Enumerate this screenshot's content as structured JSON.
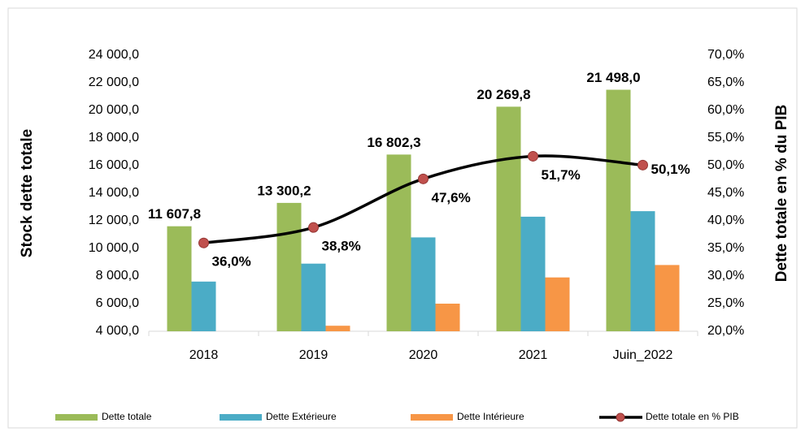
{
  "chart_data": {
    "type": "bar",
    "categories": [
      "2018",
      "2019",
      "2020",
      "2021",
      "Juin_2022"
    ],
    "ylabel": "Stock  dette  totale",
    "y2label": "Dette totale en % du PIB",
    "series": [
      {
        "name": "Dette totale",
        "color": "#9bbb59",
        "values": [
          11607.8,
          13300.2,
          16802.3,
          20269.8,
          21498.0
        ],
        "value_labels": [
          "11 607,8",
          "13 300,2",
          "16 802,3",
          "20 269,8",
          "21 498,0"
        ]
      },
      {
        "name": "Dette Extérieure",
        "color": "#4bacc6",
        "values": [
          7600,
          8900,
          10800,
          12300,
          12700
        ]
      },
      {
        "name": "Dette Intérieure",
        "color": "#f79646",
        "values": [
          null,
          4400,
          6000,
          7900,
          8800
        ]
      },
      {
        "name": "Dette totale en % PIB",
        "type": "line",
        "axis": "y2",
        "color": "#000000",
        "marker_color": "#c0504d",
        "values": [
          36.0,
          38.8,
          47.6,
          51.7,
          50.1
        ],
        "value_labels": [
          "36,0%",
          "38,8%",
          "47,6%",
          "51,7%",
          "50,1%"
        ]
      }
    ],
    "ylim": [
      4000,
      24000
    ],
    "yticks": [
      {
        "value": 4000,
        "label": "4 000,0"
      },
      {
        "value": 6000,
        "label": "6 000,0"
      },
      {
        "value": 8000,
        "label": "8 000,0"
      },
      {
        "value": 10000,
        "label": "10 000,0"
      },
      {
        "value": 12000,
        "label": "12 000,0"
      },
      {
        "value": 14000,
        "label": "14 000,0"
      },
      {
        "value": 16000,
        "label": "16 000,0"
      },
      {
        "value": 18000,
        "label": "18 000,0"
      },
      {
        "value": 20000,
        "label": "20 000,0"
      },
      {
        "value": 22000,
        "label": "22 000,0"
      },
      {
        "value": 24000,
        "label": "24 000,0"
      }
    ],
    "y2lim": [
      20,
      70
    ],
    "y2ticks": [
      {
        "value": 20,
        "label": "20,0%"
      },
      {
        "value": 25,
        "label": "25,0%"
      },
      {
        "value": 30,
        "label": "30,0%"
      },
      {
        "value": 35,
        "label": "35,0%"
      },
      {
        "value": 40,
        "label": "40,0%"
      },
      {
        "value": 45,
        "label": "45,0%"
      },
      {
        "value": 50,
        "label": "50,0%"
      },
      {
        "value": 55,
        "label": "55,0%"
      },
      {
        "value": 60,
        "label": "60,0%"
      },
      {
        "value": 65,
        "label": "65,0%"
      },
      {
        "value": 70,
        "label": "70,0%"
      }
    ],
    "legend": "bottom"
  }
}
